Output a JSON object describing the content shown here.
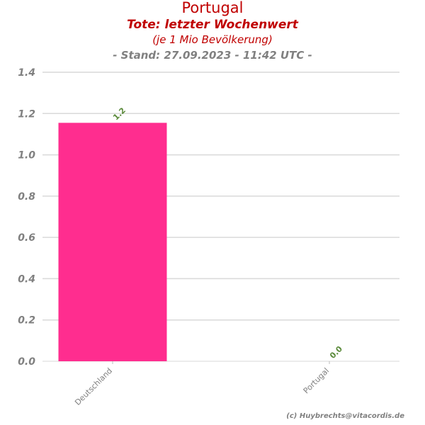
{
  "chart_data": {
    "type": "bar",
    "title": "Portugal",
    "subtitle": "Tote: letzter Wochenwert",
    "unit_note": "(je 1 Mio Bevölkerung)",
    "stand": "- Stand: 27.09.2023 - 11:42 UTC -",
    "categories": [
      "Deutschland",
      "Portugal"
    ],
    "values": [
      1.155,
      0.0
    ],
    "data_labels": [
      "1.2",
      "0.0"
    ],
    "yticks": [
      "0.0",
      "0.2",
      "0.4",
      "0.6",
      "0.8",
      "1.0",
      "1.2",
      "1.4"
    ],
    "ylim": [
      0,
      1.4
    ],
    "grid": true,
    "xlabel": "",
    "ylabel": "",
    "colors": {
      "bar": "#ff2d8f",
      "title": "#c00000",
      "stand": "#808080",
      "data_label": "#5a8a3a",
      "grid": "#d9d9d9"
    }
  },
  "footer": {
    "credit": "(c) Huybrechts@vitacordis.de"
  }
}
